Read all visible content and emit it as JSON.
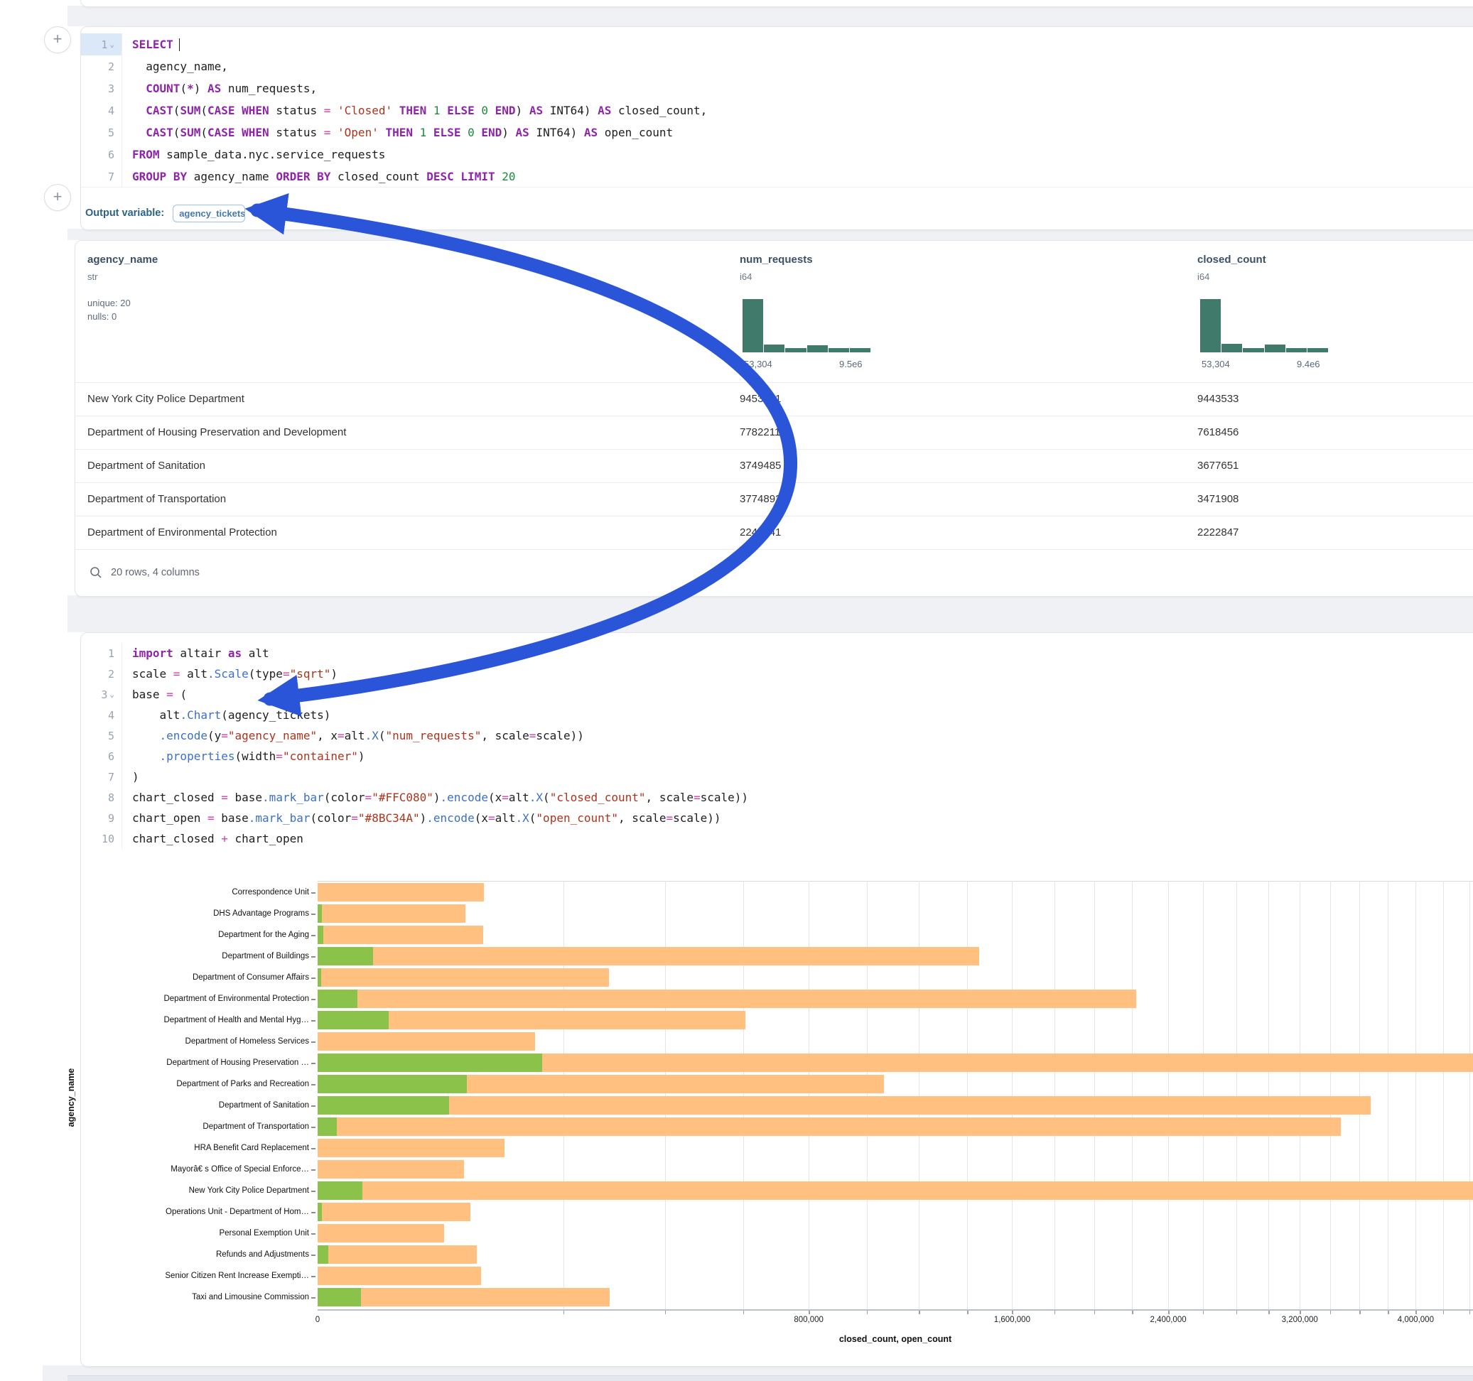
{
  "output_variable": {
    "label": "Output variable:",
    "value": "agency_tickets"
  },
  "sql_cell": {
    "lines": [
      {
        "n": "1",
        "chevron": true,
        "highlight": true,
        "cursor": true,
        "toks": [
          [
            "kw",
            "SELECT"
          ]
        ]
      },
      {
        "n": "2",
        "toks": [
          [
            "pl",
            "  agency_name,"
          ]
        ]
      },
      {
        "n": "3",
        "toks": [
          [
            "pl",
            "  "
          ],
          [
            "kw",
            "COUNT"
          ],
          [
            "pl",
            "("
          ],
          [
            "kw",
            "*"
          ],
          [
            "pl",
            ") "
          ],
          [
            "kw",
            "AS"
          ],
          [
            "pl",
            " num_requests,"
          ]
        ]
      },
      {
        "n": "4",
        "toks": [
          [
            "pl",
            "  "
          ],
          [
            "kw",
            "CAST"
          ],
          [
            "pl",
            "("
          ],
          [
            "kw",
            "SUM"
          ],
          [
            "pl",
            "("
          ],
          [
            "kw",
            "CASE"
          ],
          [
            "pl",
            " "
          ],
          [
            "kw",
            "WHEN"
          ],
          [
            "pl",
            " status "
          ],
          [
            "op",
            "="
          ],
          [
            "pl",
            " "
          ],
          [
            "st",
            "'Closed'"
          ],
          [
            "pl",
            " "
          ],
          [
            "kw",
            "THEN"
          ],
          [
            "pl",
            " "
          ],
          [
            "nm",
            "1"
          ],
          [
            "pl",
            " "
          ],
          [
            "kw",
            "ELSE"
          ],
          [
            "pl",
            " "
          ],
          [
            "nm",
            "0"
          ],
          [
            "pl",
            " "
          ],
          [
            "kw",
            "END"
          ],
          [
            "pl",
            ") "
          ],
          [
            "kw",
            "AS"
          ],
          [
            "pl",
            " INT64) "
          ],
          [
            "kw",
            "AS"
          ],
          [
            "pl",
            " closed_count,"
          ]
        ]
      },
      {
        "n": "5",
        "toks": [
          [
            "pl",
            "  "
          ],
          [
            "kw",
            "CAST"
          ],
          [
            "pl",
            "("
          ],
          [
            "kw",
            "SUM"
          ],
          [
            "pl",
            "("
          ],
          [
            "kw",
            "CASE"
          ],
          [
            "pl",
            " "
          ],
          [
            "kw",
            "WHEN"
          ],
          [
            "pl",
            " status "
          ],
          [
            "op",
            "="
          ],
          [
            "pl",
            " "
          ],
          [
            "st",
            "'Open'"
          ],
          [
            "pl",
            " "
          ],
          [
            "kw",
            "THEN"
          ],
          [
            "pl",
            " "
          ],
          [
            "nm",
            "1"
          ],
          [
            "pl",
            " "
          ],
          [
            "kw",
            "ELSE"
          ],
          [
            "pl",
            " "
          ],
          [
            "nm",
            "0"
          ],
          [
            "pl",
            " "
          ],
          [
            "kw",
            "END"
          ],
          [
            "pl",
            ") "
          ],
          [
            "kw",
            "AS"
          ],
          [
            "pl",
            " INT64) "
          ],
          [
            "kw",
            "AS"
          ],
          [
            "pl",
            " open_count"
          ]
        ]
      },
      {
        "n": "6",
        "toks": [
          [
            "kw",
            "FROM"
          ],
          [
            "pl",
            " sample_data.nyc.service_requests"
          ]
        ]
      },
      {
        "n": "7",
        "toks": [
          [
            "kw",
            "GROUP"
          ],
          [
            "pl",
            " "
          ],
          [
            "kw",
            "BY"
          ],
          [
            "pl",
            " agency_name "
          ],
          [
            "kw",
            "ORDER"
          ],
          [
            "pl",
            " "
          ],
          [
            "kw",
            "BY"
          ],
          [
            "pl",
            " closed_count "
          ],
          [
            "kw",
            "DESC"
          ],
          [
            "pl",
            " "
          ],
          [
            "kw",
            "LIMIT"
          ],
          [
            "pl",
            " "
          ],
          [
            "nm",
            "20"
          ]
        ]
      }
    ]
  },
  "table": {
    "columns": [
      {
        "name": "agency_name",
        "type": "str",
        "meta": [
          "unique: 20",
          "nulls: 0"
        ]
      },
      {
        "name": "num_requests",
        "type": "i64",
        "hist": {
          "bins": [
            1,
            0.15,
            0.08,
            0.13,
            0.08,
            0.08
          ],
          "min_label": "53,304",
          "max_label": "9.5e6"
        }
      },
      {
        "name": "closed_count",
        "type": "i64",
        "hist": {
          "bins": [
            1,
            0.16,
            0.08,
            0.15,
            0.08,
            0.08
          ],
          "min_label": "53,304",
          "max_label": "9.4e6"
        }
      }
    ],
    "rows": [
      [
        "New York City Police Department",
        "9453131",
        "9443533"
      ],
      [
        "Department of Housing Preservation and Development",
        "7782211",
        "7618456"
      ],
      [
        "Department of Sanitation",
        "3749485",
        "3677651"
      ],
      [
        "Department of Transportation",
        "3774892",
        "3471908"
      ],
      [
        "Department of Environmental Protection",
        "2240041",
        "2222847"
      ]
    ],
    "footer": "20 rows, 4 columns"
  },
  "python_cell": {
    "lines": [
      {
        "n": "1",
        "toks": [
          [
            "kw",
            "import"
          ],
          [
            "pl",
            " altair "
          ],
          [
            "kw",
            "as"
          ],
          [
            "pl",
            " alt"
          ]
        ]
      },
      {
        "n": "2",
        "toks": [
          [
            "pl",
            "scale "
          ],
          [
            "op",
            "="
          ],
          [
            "pl",
            " alt"
          ],
          [
            "fn",
            ".Scale"
          ],
          [
            "pl",
            "(type"
          ],
          [
            "op",
            "="
          ],
          [
            "st",
            "\"sqrt\""
          ],
          [
            "pl",
            ")"
          ]
        ]
      },
      {
        "n": "3",
        "chevron": true,
        "toks": [
          [
            "pl",
            "base "
          ],
          [
            "op",
            "="
          ],
          [
            "pl",
            " ("
          ]
        ]
      },
      {
        "n": "4",
        "toks": [
          [
            "pl",
            "    alt"
          ],
          [
            "fn",
            ".Chart"
          ],
          [
            "pl",
            "(agency_tickets)"
          ]
        ]
      },
      {
        "n": "5",
        "toks": [
          [
            "pl",
            "    "
          ],
          [
            "fn",
            ".encode"
          ],
          [
            "pl",
            "(y"
          ],
          [
            "op",
            "="
          ],
          [
            "st",
            "\"agency_name\""
          ],
          [
            "pl",
            ", x"
          ],
          [
            "op",
            "="
          ],
          [
            "pl",
            "alt"
          ],
          [
            "fn",
            ".X"
          ],
          [
            "pl",
            "("
          ],
          [
            "st",
            "\"num_requests\""
          ],
          [
            "pl",
            ", scale"
          ],
          [
            "op",
            "="
          ],
          [
            "pl",
            "scale))"
          ]
        ]
      },
      {
        "n": "6",
        "toks": [
          [
            "pl",
            "    "
          ],
          [
            "fn",
            ".properties"
          ],
          [
            "pl",
            "(width"
          ],
          [
            "op",
            "="
          ],
          [
            "st",
            "\"container\""
          ],
          [
            "pl",
            ")"
          ]
        ]
      },
      {
        "n": "7",
        "toks": [
          [
            "pl",
            ")"
          ]
        ]
      },
      {
        "n": "8",
        "toks": [
          [
            "pl",
            "chart_closed "
          ],
          [
            "op",
            "="
          ],
          [
            "pl",
            " base"
          ],
          [
            "fn",
            ".mark_bar"
          ],
          [
            "pl",
            "(color"
          ],
          [
            "op",
            "="
          ],
          [
            "st",
            "\"#FFC080\""
          ],
          [
            "pl",
            ")"
          ],
          [
            "fn",
            ".encode"
          ],
          [
            "pl",
            "(x"
          ],
          [
            "op",
            "="
          ],
          [
            "pl",
            "alt"
          ],
          [
            "fn",
            ".X"
          ],
          [
            "pl",
            "("
          ],
          [
            "st",
            "\"closed_count\""
          ],
          [
            "pl",
            ", scale"
          ],
          [
            "op",
            "="
          ],
          [
            "pl",
            "scale))"
          ]
        ]
      },
      {
        "n": "9",
        "toks": [
          [
            "pl",
            "chart_open "
          ],
          [
            "op",
            "="
          ],
          [
            "pl",
            " base"
          ],
          [
            "fn",
            ".mark_bar"
          ],
          [
            "pl",
            "(color"
          ],
          [
            "op",
            "="
          ],
          [
            "st",
            "\"#8BC34A\""
          ],
          [
            "pl",
            ")"
          ],
          [
            "fn",
            ".encode"
          ],
          [
            "pl",
            "(x"
          ],
          [
            "op",
            "="
          ],
          [
            "pl",
            "alt"
          ],
          [
            "fn",
            ".X"
          ],
          [
            "pl",
            "("
          ],
          [
            "st",
            "\"open_count\""
          ],
          [
            "pl",
            ", scale"
          ],
          [
            "op",
            "="
          ],
          [
            "pl",
            "scale))"
          ]
        ]
      },
      {
        "n": "10",
        "toks": [
          [
            "pl",
            "chart_closed "
          ],
          [
            "op",
            "+"
          ],
          [
            "pl",
            " chart_open"
          ]
        ]
      }
    ]
  },
  "chart_data": {
    "type": "bar",
    "orientation": "horizontal",
    "x_scale": "sqrt",
    "xlabel": "closed_count, open_count",
    "ylabel": "agency_name",
    "x_ticks": [
      0,
      800000,
      1600000,
      2400000,
      3200000,
      4000000
    ],
    "gridline_step": 200000,
    "grid_max": 4400000,
    "colors": {
      "closed": "#FFC080",
      "open": "#8BC34A"
    },
    "categories": [
      "Correspondence Unit",
      "DHS Advantage Programs",
      "Department for the Aging",
      "Department of Buildings",
      "Department of Consumer Affairs",
      "Department of Environmental Protection",
      "Department of Health and Mental Hyg…",
      "Department of Homeless Services",
      "Department of Housing Preservation …",
      "Department of Parks and Recreation",
      "Department of Sanitation",
      "Department of Transportation",
      "HRA Benefit Card Replacement",
      "Mayorâ€ s Office of Special Enforce…",
      "New York City Police Department",
      "Operations Unit - Department of Hom…",
      "Personal Exemption Unit",
      "Refunds and Adjustments",
      "Senior Citizen Rent Increase Exempti…",
      "Taxi and Limousine Commission"
    ],
    "series": [
      {
        "name": "closed_count",
        "values": [
          92000,
          72500,
          91000,
          1452000,
          281500,
          2222847,
          607000,
          157000,
          7618456,
          1064000,
          3677651,
          3471908,
          115900,
          71100,
          9443533,
          77400,
          53304,
          84000,
          88600,
          283000
        ]
      },
      {
        "name": "open_count",
        "values": [
          0,
          60,
          110,
          10200,
          40,
          5250,
          16750,
          0,
          167300,
          73900,
          57300,
          1220,
          0,
          0,
          6650,
          60,
          0,
          380,
          0,
          6200
        ]
      }
    ]
  },
  "arrow": {
    "color": "#2b55d8"
  }
}
